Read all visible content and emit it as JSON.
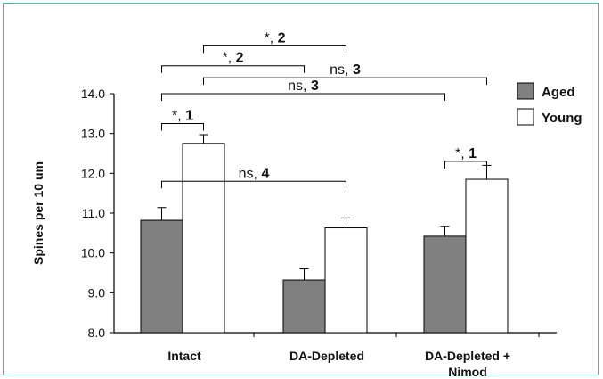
{
  "chart_data": {
    "type": "bar",
    "ylabel": "Spines per 10 um",
    "ylim": [
      8.0,
      14.0
    ],
    "yticks": [
      "8.0",
      "9.0",
      "10.0",
      "11.0",
      "12.0",
      "13.0",
      "14.0"
    ],
    "categories": [
      "Intact",
      "DA-Depleted",
      "DA-Depleted + Nimod"
    ],
    "category_lines": [
      [
        "Intact"
      ],
      [
        "DA-Depleted"
      ],
      [
        "DA-Depleted +",
        "Nimod"
      ]
    ],
    "series": [
      {
        "name": "Aged",
        "color": "#808080",
        "values": [
          10.82,
          9.32,
          10.42
        ],
        "errors": [
          0.32,
          0.28,
          0.25
        ]
      },
      {
        "name": "Young",
        "color": "#ffffff",
        "values": [
          12.75,
          10.63,
          11.85
        ],
        "errors": [
          0.22,
          0.25,
          0.35
        ]
      }
    ],
    "legend": {
      "placement": "top-right",
      "entries": [
        "Aged",
        "Young"
      ]
    },
    "grid": false,
    "comparisons": [
      {
        "from": [
          0,
          0
        ],
        "to": [
          0,
          1
        ],
        "level": 13.25,
        "prefix": "*, ",
        "number": "1"
      },
      {
        "from": [
          0,
          0
        ],
        "to": [
          1,
          1
        ],
        "level": 11.8,
        "prefix": "ns, ",
        "number": "4"
      },
      {
        "from": [
          2,
          0
        ],
        "to": [
          2,
          1
        ],
        "level": 12.3,
        "prefix": "*, ",
        "number": "1"
      },
      {
        "from": [
          0,
          0
        ],
        "to": [
          2,
          0
        ],
        "level": 14.0,
        "prefix": "ns, ",
        "number": "3"
      },
      {
        "from": [
          0,
          1
        ],
        "to": [
          2,
          1
        ],
        "level": 14.4,
        "prefix": "ns, ",
        "number": "3"
      },
      {
        "from": [
          0,
          0
        ],
        "to": [
          1,
          0
        ],
        "level": 14.7,
        "prefix": "*, ",
        "number": "2"
      },
      {
        "from": [
          0,
          1
        ],
        "to": [
          1,
          1
        ],
        "level": 15.2,
        "prefix": "*, ",
        "number": "2"
      }
    ]
  }
}
